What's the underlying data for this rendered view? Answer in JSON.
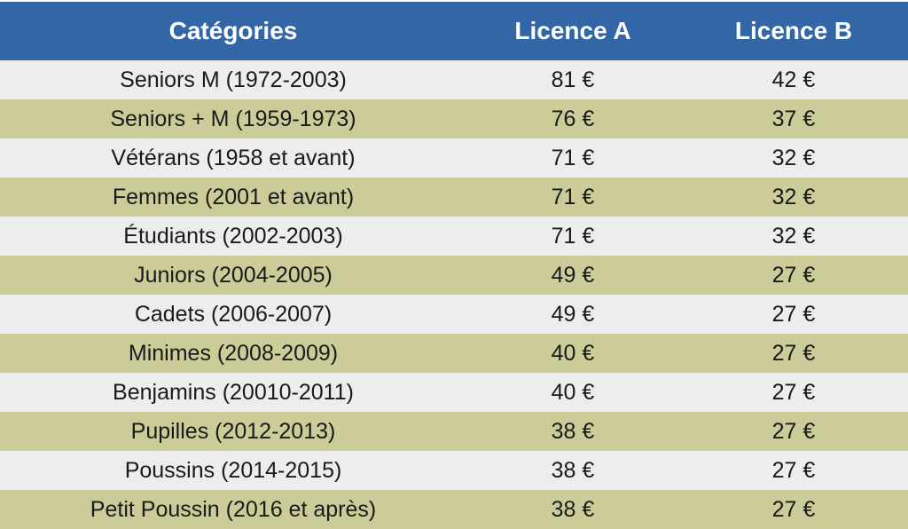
{
  "table": {
    "headers": [
      "Catégories",
      "Licence A",
      "Licence B"
    ],
    "rows": [
      {
        "category": "Seniors M (1972-2003)",
        "licence_a": "81 €",
        "licence_b": "42 €"
      },
      {
        "category": "Seniors + M (1959-1973)",
        "licence_a": "76 €",
        "licence_b": "37 €"
      },
      {
        "category": "Vétérans (1958 et avant)",
        "licence_a": "71 €",
        "licence_b": "32 €"
      },
      {
        "category": "Femmes (2001 et avant)",
        "licence_a": "71 €",
        "licence_b": "32 €"
      },
      {
        "category": "Étudiants (2002-2003)",
        "licence_a": "71 €",
        "licence_b": "32 €"
      },
      {
        "category": "Juniors (2004-2005)",
        "licence_a": "49 €",
        "licence_b": "27 €"
      },
      {
        "category": "Cadets (2006-2007)",
        "licence_a": "49 €",
        "licence_b": "27 €"
      },
      {
        "category": "Minimes (2008-2009)",
        "licence_a": "40 €",
        "licence_b": "27 €"
      },
      {
        "category": "Benjamins (20010-2011)",
        "licence_a": "40 €",
        "licence_b": "27 €"
      },
      {
        "category": "Pupilles (2012-2013)",
        "licence_a": "38 €",
        "licence_b": "27 €"
      },
      {
        "category": "Poussins (2014-2015)",
        "licence_a": "38 €",
        "licence_b": "27 €"
      },
      {
        "category": "Petit Poussin (2016 et après)",
        "licence_a": "38 €",
        "licence_b": "27 €"
      }
    ]
  },
  "colors": {
    "header_bg": "#3366a6",
    "row_light": "#ededed",
    "row_olive": "#cccc99"
  }
}
